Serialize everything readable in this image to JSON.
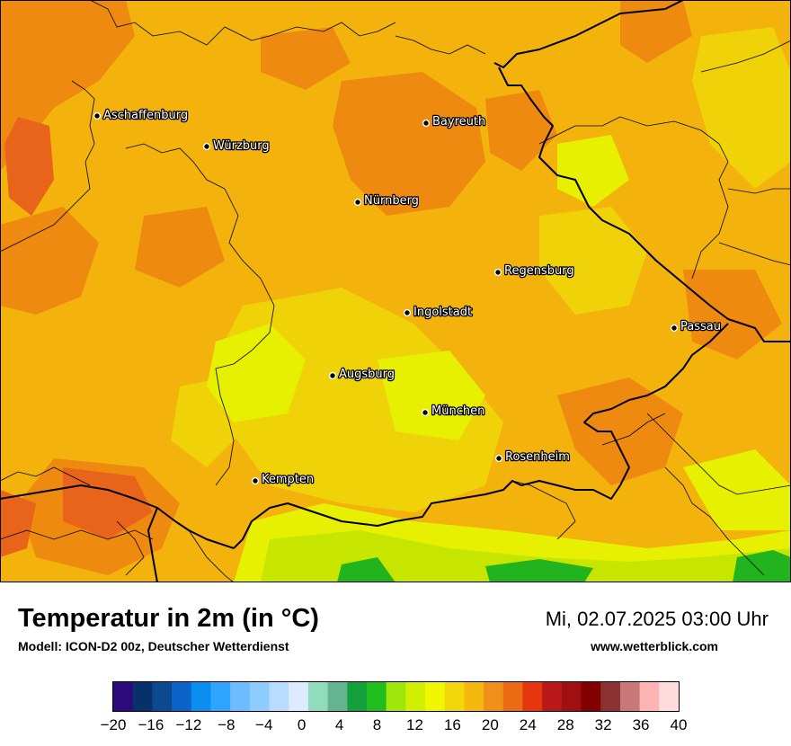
{
  "title": "Temperatur in 2m (in °C)",
  "subtitle": "Modell: ICON-D2 00z, Deutscher Wetterdienst",
  "datetime": "Mi, 02.07.2025 03:00 Uhr",
  "website": "www.wetterblick.com",
  "colors": {
    "map_base": "#f3b20c",
    "warm": "#ef8a10",
    "hot": "#e8641a",
    "mild": "#f0d208",
    "cool": "#e6f000",
    "cooler": "#c6e600",
    "green": "#22b41e",
    "border": "#000000"
  },
  "cities": [
    {
      "name": "Aschaffenburg"
    },
    {
      "name": "Würzburg"
    },
    {
      "name": "Bayreuth"
    },
    {
      "name": "Nürnberg"
    },
    {
      "name": "Regensburg"
    },
    {
      "name": "Ingolstadt"
    },
    {
      "name": "Passau"
    },
    {
      "name": "Augsburg"
    },
    {
      "name": "München"
    },
    {
      "name": "Rosenheim"
    },
    {
      "name": "Kempten"
    }
  ],
  "legend": {
    "tick_labels": [
      "−20",
      "−16",
      "−12",
      "−8",
      "−4",
      "0",
      "4",
      "8",
      "12",
      "16",
      "20",
      "24",
      "28",
      "32",
      "36",
      "40"
    ],
    "colors": [
      "#2b0a7c",
      "#08306b",
      "#0b4a8f",
      "#0a64c8",
      "#0a8ef0",
      "#2ea6ff",
      "#6cbcff",
      "#8ecbff",
      "#b8dcff",
      "#dcebff",
      "#90dcbc",
      "#64b494",
      "#14a03c",
      "#20be1c",
      "#a0e60a",
      "#d2ef00",
      "#f0f500",
      "#f2d60c",
      "#f4b90c",
      "#f0901a",
      "#ed6a14",
      "#e6360e",
      "#b81818",
      "#a01010",
      "#820000",
      "#8c3232",
      "#c87878",
      "#ffb4b4",
      "#ffdcdc"
    ]
  }
}
